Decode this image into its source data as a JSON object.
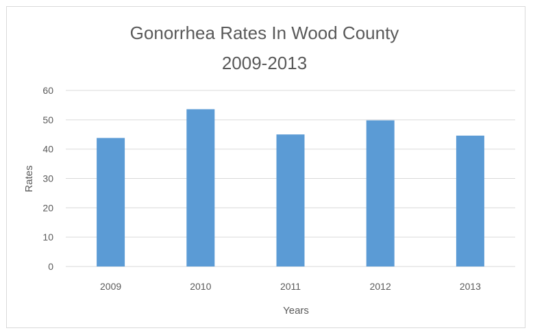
{
  "chart_data": {
    "type": "bar",
    "title": "Gonorrhea Rates In Wood County",
    "subtitle": "2009-2013",
    "xlabel": "Years",
    "ylabel": "Rates",
    "categories": [
      "2009",
      "2010",
      "2011",
      "2012",
      "2013"
    ],
    "values": [
      43.8,
      53.6,
      45.0,
      49.8,
      44.6
    ],
    "ylim": [
      0,
      60
    ],
    "yticks": [
      0,
      10,
      20,
      30,
      40,
      50,
      60
    ],
    "grid": true,
    "legend": "none",
    "bar_color": "#5b9bd5",
    "grid_color": "#d9d9d9",
    "text_color": "#595959"
  }
}
